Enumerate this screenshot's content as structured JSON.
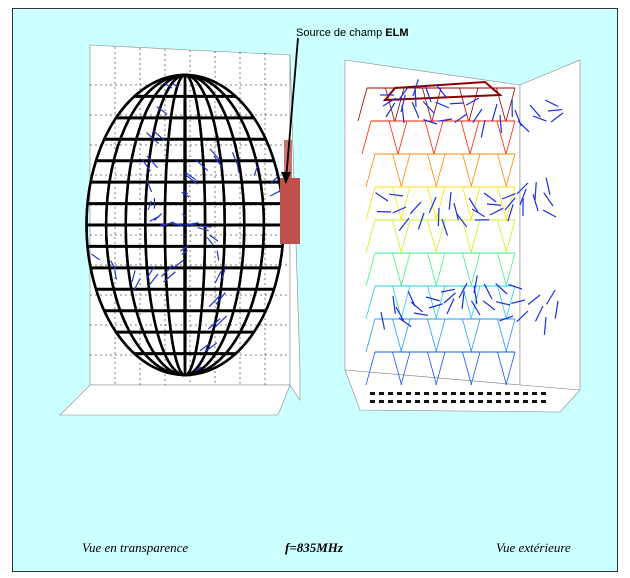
{
  "annotation": {
    "text": "Source de champ ",
    "emphasis": "ELM"
  },
  "captions": {
    "left": "Vue en transparence",
    "center": "f=835MHz",
    "right": "Vue extérieure"
  }
}
